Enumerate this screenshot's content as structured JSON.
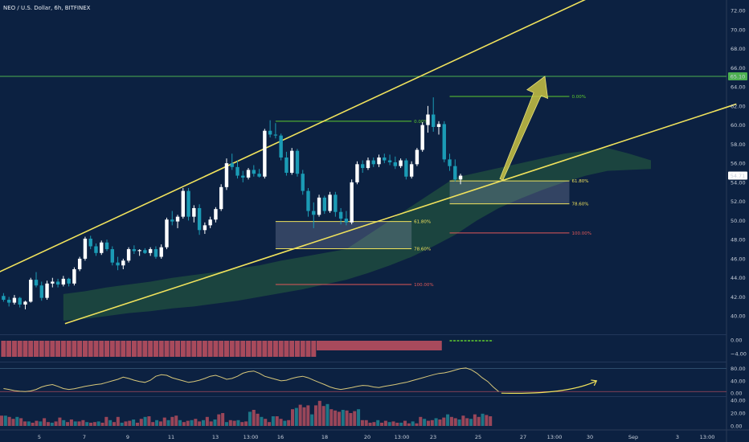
{
  "header": {
    "title": "NEO / U.S. Dollar, 6h, BITFINEX"
  },
  "chart_data": {
    "type": "candlestick",
    "symbol": "NEO / U.S. Dollar",
    "interval": "6h",
    "exchange": "BITFINEX",
    "colors": {
      "up": "#ffffff",
      "down": "#1b9bb5",
      "channel": "#f0e25c",
      "ichimoku": "#2f6e3f",
      "fib_zero": "#5ecb2f",
      "fib_ext": "#e05858",
      "target": "#4caf50",
      "arrow": "#c9c243"
    },
    "y_axis": {
      "min": 38,
      "max": 72,
      "ticks": [
        "72.00",
        "70.00",
        "68.00",
        "66.00",
        "64.00",
        "62.00",
        "60.00",
        "58.00",
        "56.00",
        "54.00",
        "52.00",
        "50.00",
        "48.00",
        "46.00",
        "44.00",
        "42.00",
        "40.00"
      ]
    },
    "x_axis": {
      "ticks": [
        "5",
        "7",
        "9",
        "11",
        "13",
        "13:00",
        "16",
        "18",
        "20",
        "13:00",
        "23",
        "25",
        "27",
        "13:00",
        "30",
        "Sep",
        "3",
        "13:00"
      ]
    },
    "last_price": "54.71",
    "target_level": {
      "value": 65.1,
      "label": "65.10"
    },
    "candles": [
      [
        42.1,
        42.4,
        41.5,
        41.7
      ],
      [
        41.7,
        42.0,
        41.0,
        41.4
      ],
      [
        41.4,
        42.2,
        41.2,
        41.9
      ],
      [
        41.9,
        42.0,
        40.9,
        41.2
      ],
      [
        41.2,
        41.6,
        40.7,
        41.5
      ],
      [
        41.5,
        44.0,
        41.4,
        43.8
      ],
      [
        43.8,
        44.6,
        43.0,
        43.2
      ],
      [
        43.2,
        43.6,
        41.6,
        41.9
      ],
      [
        41.9,
        43.7,
        41.7,
        43.4
      ],
      [
        43.4,
        44.0,
        43.0,
        43.6
      ],
      [
        43.6,
        43.9,
        43.0,
        43.3
      ],
      [
        43.3,
        44.2,
        43.1,
        43.9
      ],
      [
        43.9,
        44.0,
        43.1,
        43.4
      ],
      [
        43.4,
        45.1,
        43.2,
        44.9
      ],
      [
        44.9,
        46.2,
        44.7,
        46.0
      ],
      [
        46.0,
        48.3,
        45.8,
        48.1
      ],
      [
        48.1,
        48.4,
        47.0,
        47.3
      ],
      [
        47.3,
        47.6,
        46.3,
        46.6
      ],
      [
        46.6,
        47.9,
        46.4,
        47.7
      ],
      [
        47.7,
        48.0,
        46.8,
        47.0
      ],
      [
        47.0,
        47.3,
        45.3,
        45.6
      ],
      [
        45.6,
        46.2,
        44.8,
        45.3
      ],
      [
        45.3,
        46.0,
        44.9,
        45.8
      ],
      [
        45.8,
        47.2,
        45.6,
        47.0
      ],
      [
        47.0,
        47.4,
        46.5,
        46.8
      ],
      [
        46.8,
        47.0,
        46.3,
        46.9
      ],
      [
        46.9,
        47.1,
        46.5,
        46.6
      ],
      [
        46.6,
        47.2,
        46.3,
        47.0
      ],
      [
        47.0,
        47.3,
        46.0,
        46.2
      ],
      [
        46.2,
        47.5,
        46.0,
        47.2
      ],
      [
        47.2,
        50.3,
        47.0,
        50.1
      ],
      [
        50.1,
        51.0,
        49.5,
        49.9
      ],
      [
        49.9,
        50.6,
        49.2,
        50.4
      ],
      [
        50.4,
        53.4,
        50.2,
        53.1
      ],
      [
        53.1,
        53.4,
        50.0,
        50.4
      ],
      [
        50.4,
        51.6,
        49.8,
        51.3
      ],
      [
        51.3,
        51.7,
        48.5,
        49.0
      ],
      [
        49.0,
        49.8,
        48.6,
        49.5
      ],
      [
        49.5,
        50.4,
        49.2,
        50.1
      ],
      [
        50.1,
        51.4,
        49.8,
        51.2
      ],
      [
        51.2,
        53.8,
        51.0,
        53.5
      ],
      [
        53.5,
        56.5,
        53.2,
        56.0
      ],
      [
        56.0,
        57.0,
        55.3,
        55.6
      ],
      [
        55.6,
        56.3,
        54.4,
        54.7
      ],
      [
        54.7,
        55.2,
        54.0,
        54.5
      ],
      [
        54.5,
        55.5,
        54.3,
        55.3
      ],
      [
        55.3,
        55.8,
        54.6,
        54.9
      ],
      [
        54.9,
        55.4,
        54.5,
        54.6
      ],
      [
        54.6,
        59.6,
        54.4,
        59.4
      ],
      [
        59.4,
        60.5,
        58.7,
        59.0
      ],
      [
        59.0,
        60.2,
        58.6,
        58.9
      ],
      [
        58.9,
        59.1,
        56.3,
        56.6
      ],
      [
        56.6,
        57.2,
        54.7,
        55.0
      ],
      [
        55.0,
        57.6,
        54.8,
        57.3
      ],
      [
        57.3,
        57.5,
        54.6,
        54.9
      ],
      [
        54.9,
        55.3,
        52.7,
        53.1
      ],
      [
        53.1,
        53.4,
        50.4,
        51.0
      ],
      [
        51.0,
        51.9,
        49.2,
        50.6
      ],
      [
        50.6,
        52.7,
        50.4,
        52.4
      ],
      [
        52.4,
        52.6,
        50.7,
        51.0
      ],
      [
        51.0,
        53.0,
        50.8,
        52.7
      ],
      [
        52.7,
        53.0,
        50.4,
        50.9
      ],
      [
        50.9,
        51.3,
        49.6,
        50.2
      ],
      [
        50.2,
        51.0,
        49.5,
        49.8
      ],
      [
        49.8,
        54.3,
        49.6,
        54.0
      ],
      [
        54.0,
        56.2,
        53.8,
        55.9
      ],
      [
        55.9,
        56.3,
        55.0,
        55.5
      ],
      [
        55.5,
        56.6,
        55.3,
        56.3
      ],
      [
        56.3,
        56.6,
        55.6,
        55.9
      ],
      [
        55.9,
        56.9,
        55.6,
        56.6
      ],
      [
        56.6,
        57.0,
        56.0,
        56.3
      ],
      [
        56.3,
        56.9,
        55.8,
        56.1
      ],
      [
        56.1,
        56.7,
        55.4,
        55.7
      ],
      [
        55.7,
        56.5,
        55.5,
        56.3
      ],
      [
        56.3,
        56.5,
        54.3,
        54.6
      ],
      [
        54.6,
        56.2,
        54.4,
        55.9
      ],
      [
        55.9,
        57.6,
        55.7,
        57.4
      ],
      [
        57.4,
        60.3,
        57.2,
        60.0
      ],
      [
        60.0,
        62.0,
        59.2,
        61.1
      ],
      [
        61.1,
        62.9,
        59.3,
        59.8
      ],
      [
        59.8,
        60.4,
        59.0,
        60.1
      ],
      [
        60.1,
        60.4,
        56.1,
        56.4
      ],
      [
        56.4,
        57.0,
        55.2,
        55.7
      ],
      [
        55.7,
        56.4,
        54.1,
        54.3
      ],
      [
        54.3,
        54.9,
        53.8,
        54.7
      ]
    ],
    "channel_lines": [
      {
        "from": {
          "bar": -1.2,
          "price": 44.5
        },
        "to": {
          "bar": 134.7,
          "price": 80.5
        }
      },
      {
        "from": {
          "bar": 11.3,
          "price": 39.2
        },
        "to": {
          "bar": 134.7,
          "price": 62.2
        }
      }
    ],
    "fib_left": {
      "x1": 50,
      "x2": 75,
      "levels": [
        {
          "label": "0.00%",
          "value": 60.4,
          "color": "#5ecb2f",
          "span": "full"
        },
        {
          "label": "61.80%",
          "value": 49.9,
          "color": "#f0e25c"
        },
        {
          "label": "78.60%",
          "value": 47.05,
          "color": "#f0e25c"
        },
        {
          "label": "100.00%",
          "value": 43.3,
          "color": "#e05858"
        }
      ],
      "zone": [
        47.05,
        49.9
      ]
    },
    "fib_right": {
      "x1": 82,
      "x2": 104,
      "levels": [
        {
          "label": "0.00%",
          "value": 63.0,
          "color": "#5ecb2f"
        },
        {
          "label": "61.80%",
          "value": 54.15,
          "color": "#f0e25c"
        },
        {
          "label": "78.60%",
          "value": 51.75,
          "color": "#f0e25c"
        },
        {
          "label": "100.00%",
          "value": 48.7,
          "color": "#e05858"
        }
      ],
      "zone": [
        51.75,
        54.15
      ]
    },
    "projection_arrow": {
      "from": {
        "bar": 91.5,
        "price": 54.3
      },
      "to": {
        "bar": 99.5,
        "price": 65.1
      }
    },
    "ichimoku_cloud": {
      "start_bar": 11,
      "step": 4,
      "upper": [
        42.3,
        42.6,
        43.0,
        43.3,
        43.6,
        44.0,
        44.3,
        44.6,
        45.0,
        45.3,
        45.8,
        46.2,
        46.6,
        47.0,
        48.5,
        50.0,
        51.5,
        53.0,
        54.5,
        55.0,
        55.5,
        56.0,
        56.5,
        57.0,
        57.3,
        57.6,
        57.0,
        56.3
      ],
      "lower": [
        39.5,
        39.7,
        40.0,
        40.3,
        40.5,
        40.8,
        41.0,
        41.3,
        41.6,
        42.0,
        42.4,
        42.8,
        43.3,
        43.8,
        44.5,
        45.3,
        46.2,
        47.3,
        48.5,
        50.0,
        51.3,
        52.3,
        53.2,
        54.0,
        54.7,
        55.2,
        55.3,
        55.4
      ]
    },
    "histogram_panel": {
      "ticks": [
        "0.00",
        "−4.00"
      ],
      "bars_red": 60,
      "bars_step_at": 60,
      "line_start_bar": 82,
      "line_end_bar": 90
    },
    "oscillator_panel": {
      "ticks": [
        "80.00",
        "40.00",
        "0.00"
      ],
      "range": [
        -10,
        100
      ],
      "levels": [
        80,
        5
      ],
      "values": [
        15,
        12,
        8,
        6,
        5,
        7,
        12,
        20,
        25,
        28,
        22,
        15,
        12,
        14,
        18,
        22,
        25,
        28,
        30,
        35,
        40,
        45,
        52,
        48,
        42,
        38,
        35,
        42,
        55,
        60,
        58,
        50,
        45,
        40,
        35,
        38,
        42,
        48,
        55,
        58,
        52,
        45,
        48,
        55,
        65,
        70,
        72,
        65,
        55,
        50,
        45,
        40,
        42,
        48,
        52,
        55,
        50,
        42,
        35,
        28,
        20,
        15,
        12,
        15,
        18,
        22,
        25,
        24,
        20,
        18,
        22,
        25,
        28,
        32,
        35,
        40,
        45,
        50,
        55,
        60,
        64,
        66,
        70,
        75,
        80,
        82,
        76,
        65,
        50,
        38,
        20,
        5
      ],
      "forecast": {
        "from": {
          "bar": 91.5,
          "value": 0
        },
        "to": {
          "bar": 109,
          "value": 40
        }
      }
    },
    "volume_panel": {
      "ticks": [
        "40.00",
        "20.00",
        "0.00"
      ],
      "range": [
        0,
        45
      ],
      "values": [
        16,
        16,
        14,
        11,
        14,
        12,
        7,
        7,
        5,
        8,
        7,
        12,
        6,
        5,
        7,
        13,
        9,
        6,
        10,
        7,
        7,
        9,
        6,
        5,
        6,
        7,
        5,
        14,
        9,
        6,
        14,
        5,
        7,
        8,
        10,
        5,
        11,
        14,
        15,
        6,
        9,
        7,
        13,
        9,
        14,
        16,
        9,
        6,
        8,
        9,
        11,
        7,
        9,
        14,
        7,
        10,
        18,
        20,
        6,
        9,
        8,
        9,
        6,
        7,
        22,
        25,
        19,
        14,
        11,
        6,
        15,
        15,
        11,
        8,
        9,
        26,
        28,
        33,
        29,
        32,
        18,
        32,
        39,
        31,
        34,
        26,
        24,
        22,
        25,
        24,
        20,
        23,
        26,
        9,
        9,
        5,
        6,
        9,
        5,
        8,
        6,
        7,
        5,
        5,
        8,
        4,
        7,
        4,
        14,
        11,
        8,
        9,
        12,
        10,
        13,
        18,
        14,
        12,
        10,
        16,
        12,
        11,
        18,
        14,
        19,
        17,
        15
      ]
    }
  }
}
